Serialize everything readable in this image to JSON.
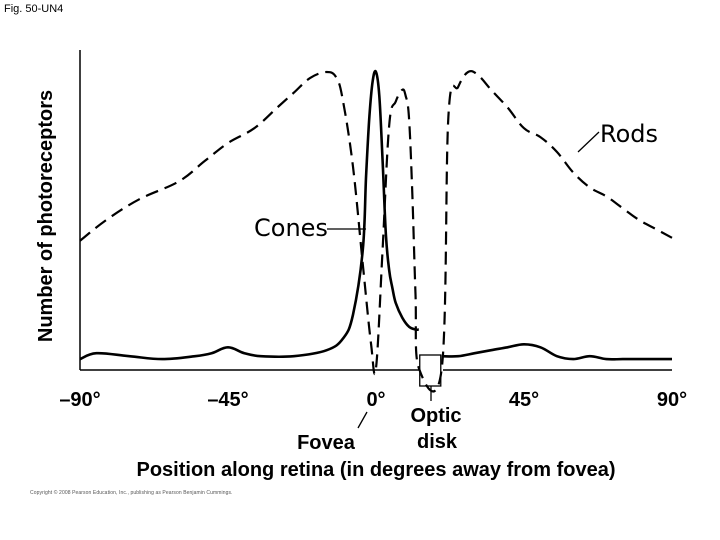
{
  "figure_label": "Fig. 50-UN4",
  "copyright": "Copyright © 2008 Pearson Education, Inc., publishing as Pearson Benjamin Cummings.",
  "chart_data": {
    "type": "line",
    "title": "",
    "xlabel": "Position along retina (in degrees away from fovea)",
    "ylabel": "Number of photoreceptors",
    "xlim": [
      -90,
      90
    ],
    "ylim": [
      0,
      100
    ],
    "xticks": [
      -90,
      -45,
      0,
      45,
      90
    ],
    "tick_labels": [
      "–90°",
      "–45°",
      "0°",
      "45°",
      "90°"
    ],
    "grid": false,
    "annotations": {
      "fovea": "Fovea",
      "optic_disk_line1": "Optic",
      "optic_disk_line2": "disk",
      "optic_disk_range": [
        13,
        20
      ]
    },
    "series": [
      {
        "name": "Rods",
        "style": "dashed",
        "color": "#000000",
        "x": [
          -90,
          -82,
          -72,
          -60,
          -52,
          -45,
          -37,
          -30,
          -25,
          -20,
          -15,
          -12,
          -10,
          -7,
          -4,
          -1.5,
          0,
          2,
          4,
          6,
          8,
          9,
          10,
          11,
          12,
          13,
          20,
          22,
          25,
          28,
          31,
          35,
          40,
          45,
          50,
          55,
          60,
          65,
          70,
          75,
          80,
          85,
          90
        ],
        "values": [
          43,
          50,
          57,
          63,
          70,
          76,
          81,
          88,
          93,
          98,
          100,
          98,
          90,
          68,
          35,
          8,
          0,
          40,
          82,
          90,
          94,
          92,
          85,
          60,
          25,
          0,
          0,
          85,
          95,
          100,
          99,
          94,
          88,
          81,
          78,
          73,
          66,
          61,
          58,
          54,
          50,
          47,
          44
        ]
      },
      {
        "name": "Cones",
        "color": "#000000",
        "x": [
          -90,
          -85,
          -75,
          -65,
          -55,
          -50,
          -45,
          -40,
          -35,
          -25,
          -15,
          -10,
          -7,
          -4,
          -3,
          -2,
          -1,
          0,
          1,
          2,
          3,
          4,
          5,
          6,
          8,
          10,
          12,
          13,
          20,
          25,
          30,
          35,
          40,
          45,
          50,
          55,
          60,
          65,
          70,
          75,
          80,
          85,
          90
        ],
        "values": [
          3,
          5,
          4,
          3,
          4,
          5,
          7,
          5,
          4,
          4,
          6,
          10,
          18,
          40,
          65,
          85,
          97,
          100,
          92,
          70,
          45,
          33,
          27,
          22,
          17,
          14,
          13,
          13,
          4,
          4,
          5,
          6,
          7,
          8,
          7,
          4,
          3,
          4,
          3,
          3,
          3,
          3,
          3
        ]
      }
    ]
  },
  "labels": {
    "rods": "Rods",
    "cones": "Cones"
  }
}
